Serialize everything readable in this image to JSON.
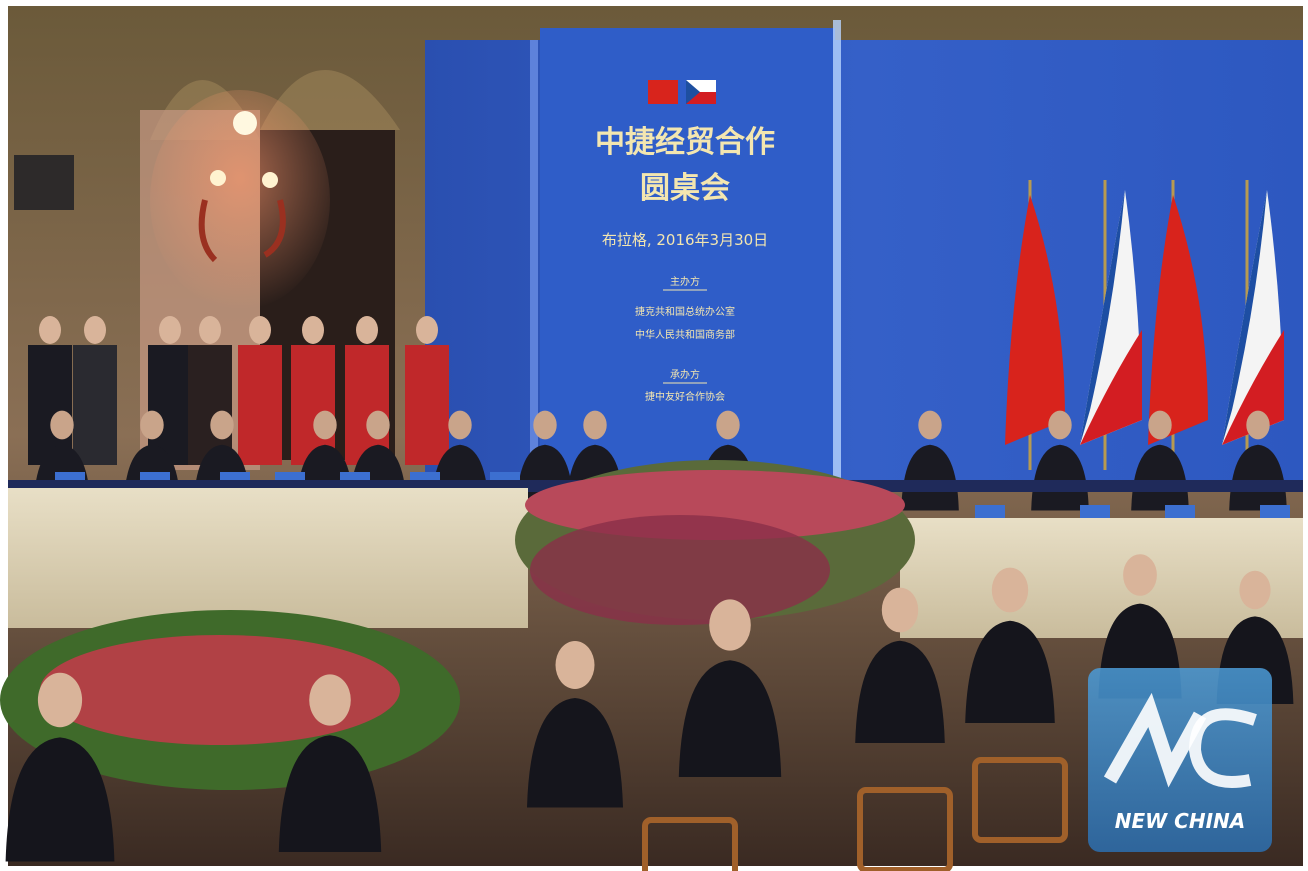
{
  "backdrop": {
    "title_line1": "中捷经贸合作",
    "title_line2": "圆桌会",
    "place_date": "布拉格, 2016年3月30日",
    "organizer_label": "主办方",
    "organizers": [
      "捷克共和国总统办公室",
      "中华人民共和国商务部"
    ],
    "co_organizer_label": "承办方",
    "co_organizers": [
      "捷中友好合作协会"
    ]
  },
  "watermark": {
    "text": "NEW CHINA"
  }
}
